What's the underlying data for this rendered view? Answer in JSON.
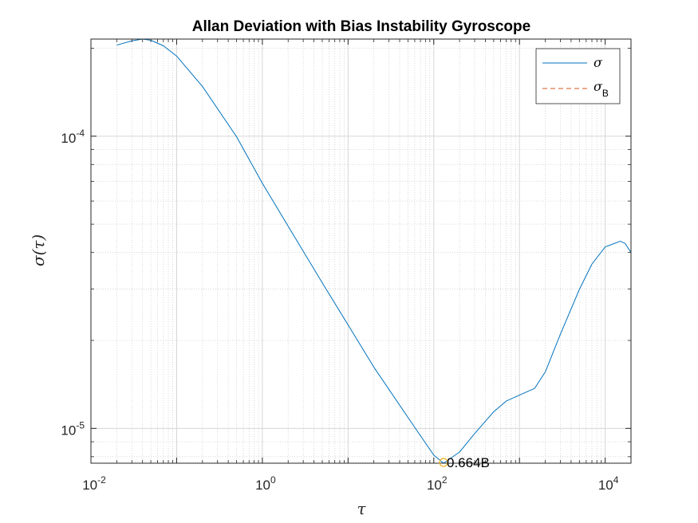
{
  "chart_data": {
    "type": "line",
    "title": "Allan Deviation with Bias Instability Gyroscope",
    "xlabel": "τ",
    "ylabel": "σ(τ)",
    "xscale": "log",
    "yscale": "log",
    "xlim": [
      0.01,
      20000
    ],
    "ylim": [
      7.6e-06,
      0.000215
    ],
    "xticks": [
      {
        "value": 0.01,
        "base": "10",
        "exp": "-2"
      },
      {
        "value": 1,
        "base": "10",
        "exp": "0"
      },
      {
        "value": 100,
        "base": "10",
        "exp": "2"
      },
      {
        "value": 10000,
        "base": "10",
        "exp": "4"
      }
    ],
    "yticks": [
      {
        "value": 1e-05,
        "base": "10",
        "exp": "-5"
      },
      {
        "value": 0.0001,
        "base": "10",
        "exp": "-4"
      }
    ],
    "grid": true,
    "minor_grid": true,
    "legend_position": "top-right",
    "series": [
      {
        "name": "σ",
        "color": "#0072BD",
        "dash": "solid",
        "x": [
          0.02,
          0.03,
          0.04,
          0.05,
          0.07,
          0.1,
          0.2,
          0.5,
          1,
          2,
          5,
          10,
          20,
          50,
          100,
          130,
          200,
          300,
          500,
          700,
          1000,
          1500,
          2000,
          3000,
          5000,
          7000,
          10000,
          15000,
          17000,
          20000
        ],
        "y": [
          0.000205,
          0.000212,
          0.000215,
          0.000213,
          0.000204,
          0.000188,
          0.000148,
          9.96e-05,
          6.9e-05,
          4.92e-05,
          3.15e-05,
          2.26e-05,
          1.62e-05,
          1.09e-05,
          8.1e-06,
          7.6e-06,
          8.3e-06,
          9.6e-06,
          1.14e-05,
          1.24e-05,
          1.3e-05,
          1.37e-05,
          1.56e-05,
          2.1e-05,
          2.99e-05,
          3.65e-05,
          4.18e-05,
          4.37e-05,
          4.3e-05,
          4e-05
        ]
      },
      {
        "name": "σB",
        "label_main": "σ",
        "label_sub": "B",
        "color": "#D95319",
        "dash": "dashed",
        "x": [
          0.01,
          20000
        ],
        "y": [
          7.6e-06,
          7.6e-06
        ]
      }
    ],
    "annotation": {
      "x": 130,
      "y": 7.6e-06,
      "text": "0.664B",
      "marker_color": "#EDB120"
    }
  }
}
